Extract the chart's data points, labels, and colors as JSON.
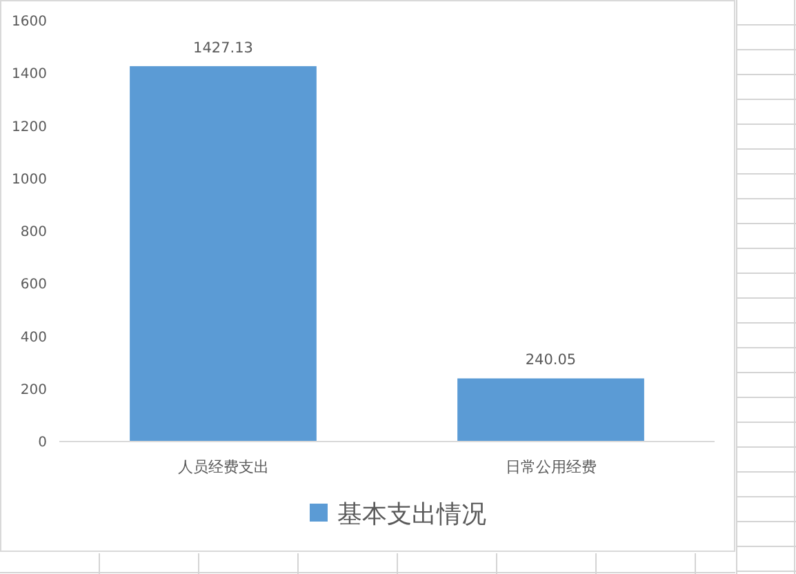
{
  "chart_data": {
    "type": "bar",
    "categories": [
      "人员经费支出",
      "日常公用经费"
    ],
    "series": [
      {
        "name": "基本支出情况",
        "color": "#5b9bd5",
        "values": [
          1427.13,
          240.05
        ]
      }
    ],
    "ylim": [
      0,
      1600
    ],
    "yticks": [
      0,
      200,
      400,
      600,
      800,
      1000,
      1200,
      1400,
      1600
    ],
    "grid": false,
    "legend": "bottom",
    "data_labels": true
  }
}
